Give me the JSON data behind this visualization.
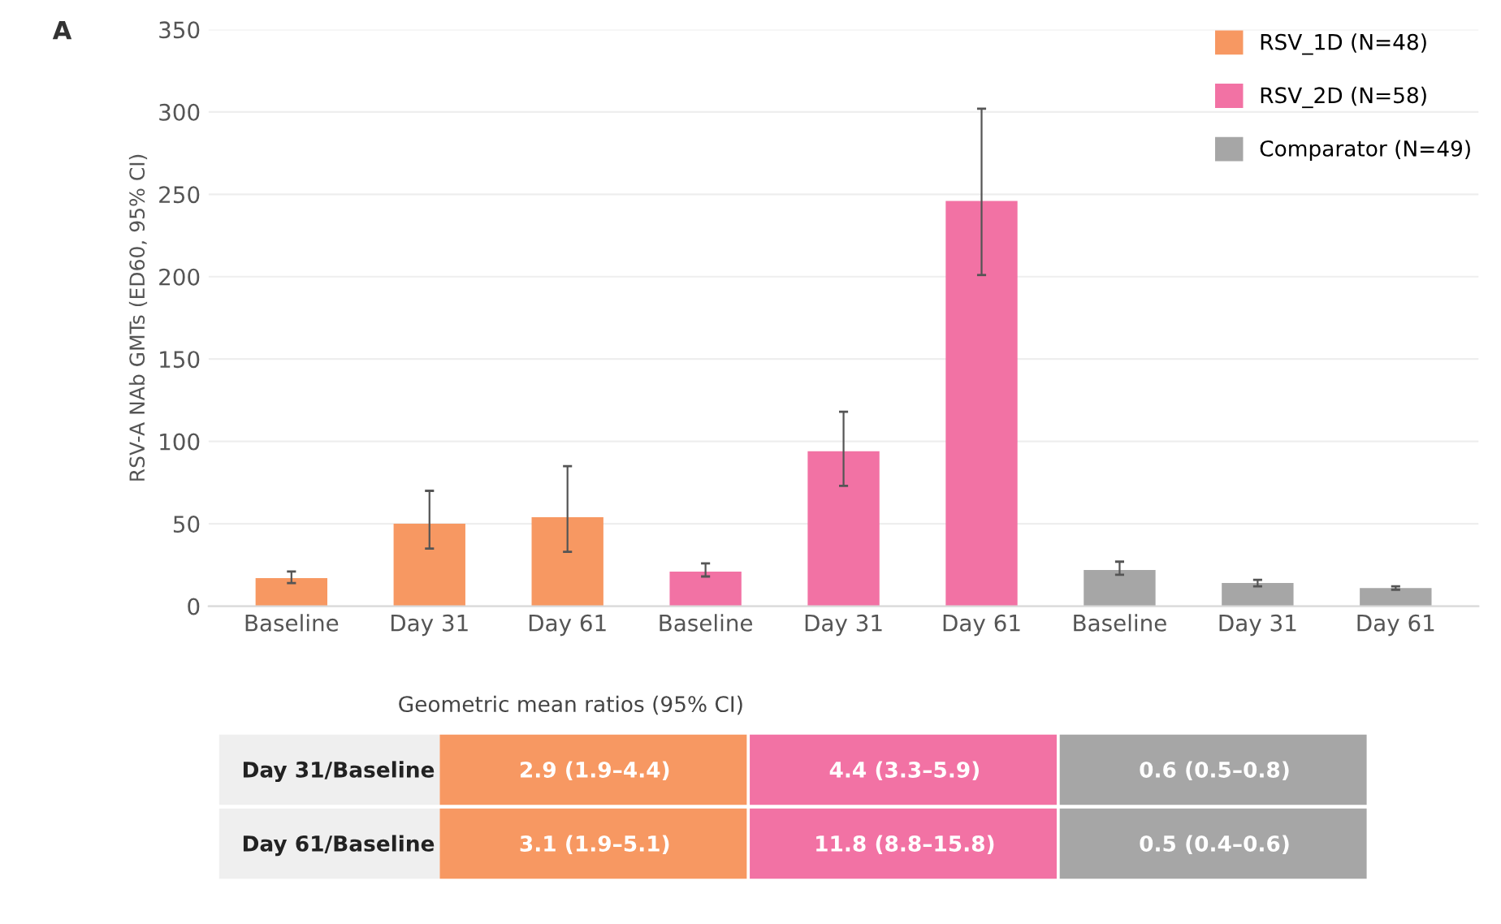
{
  "chart_data": {
    "type": "bar",
    "title": "A",
    "ylabel": "RSV-A NAb GMTs (ED60, 95% CI)",
    "categories": [
      "Baseline",
      "Day 31",
      "Day 61",
      "Baseline",
      "Day 31",
      "Day 61",
      "Baseline",
      "Day 31",
      "Day 61"
    ],
    "series": [
      {
        "name": "RSV_1D (N=48)",
        "color": "#f79862",
        "values": [
          17,
          50,
          54,
          null,
          null,
          null,
          null,
          null,
          null
        ],
        "errors": [
          [
            14,
            21
          ],
          [
            35,
            70
          ],
          [
            33,
            85
          ],
          null,
          null,
          null,
          null,
          null,
          null
        ]
      },
      {
        "name": "RSV_2D (N=58)",
        "color": "#f272a4",
        "values": [
          null,
          null,
          null,
          21,
          94,
          246,
          null,
          null,
          null
        ],
        "errors": [
          null,
          null,
          null,
          [
            18,
            26
          ],
          [
            73,
            118
          ],
          [
            201,
            302
          ],
          null,
          null,
          null
        ]
      },
      {
        "name": "Comparator (N=49)",
        "color": "#a6a6a6",
        "values": [
          null,
          null,
          null,
          null,
          null,
          null,
          22,
          14,
          11
        ],
        "errors": [
          null,
          null,
          null,
          null,
          null,
          null,
          [
            19,
            27
          ],
          [
            12,
            16
          ],
          [
            10,
            12
          ]
        ]
      }
    ],
    "ylim": [
      0,
      350
    ],
    "yticks": [
      0,
      50,
      100,
      150,
      200,
      250,
      300,
      350
    ],
    "grid": "y",
    "legend": "top right",
    "annotations": [
      "Geometric mean ratios (95% CI)",
      "Day 31/Baseline",
      "2.9 (1.9–4.4)",
      "4.4 (3.3–5.9)",
      "0.6 (0.5–0.8)",
      "Day 61/Baseline",
      "3.1 (1.9–5.1)",
      "11.8 (8.8–15.8)",
      "0.5 (0.4–0.6)"
    ]
  }
}
